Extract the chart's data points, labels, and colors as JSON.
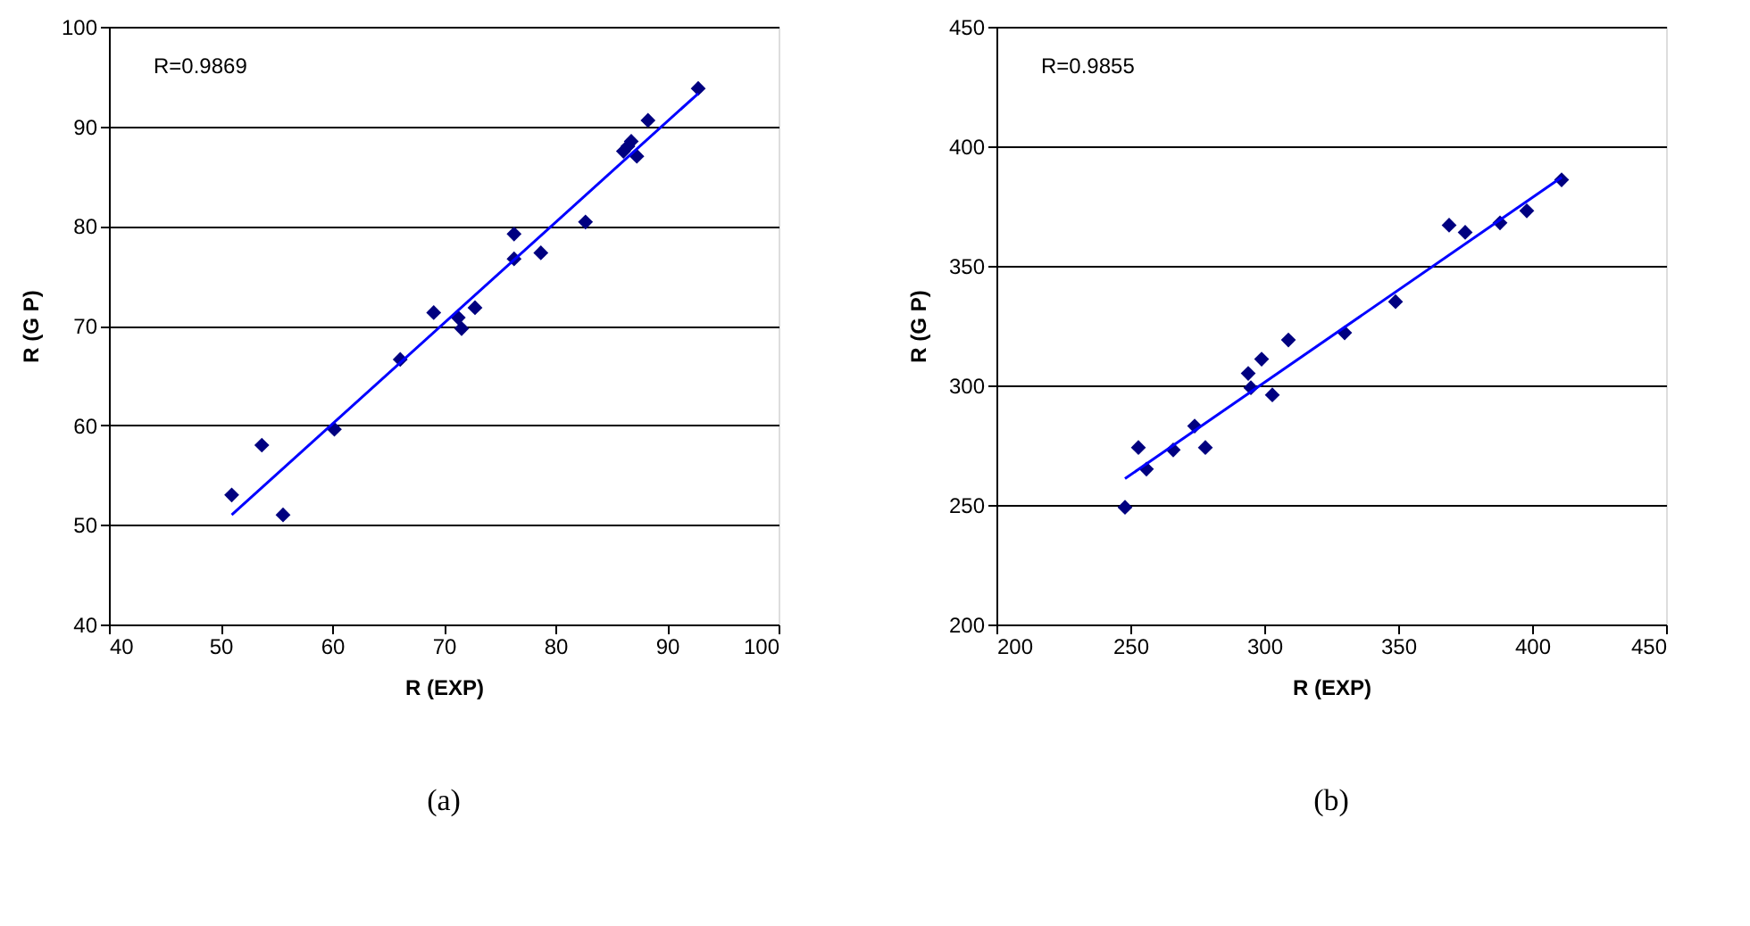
{
  "chart_data": [
    {
      "type": "scatter",
      "xlabel": "R (EXP)",
      "ylabel": "R (G P)",
      "xlim": [
        40,
        100
      ],
      "xticks": [
        40,
        50,
        60,
        70,
        80,
        90,
        100
      ],
      "ylim": [
        40,
        100
      ],
      "yticks": [
        40,
        50,
        60,
        70,
        80,
        90,
        100
      ],
      "grid": "y",
      "annotations": [
        "R=0.9869",
        "(a)"
      ],
      "series": [
        {
          "type": "scatter",
          "marker": "diamond",
          "color": "#000080",
          "x": [
            51,
            53.7,
            55.6,
            60.2,
            66.1,
            69.1,
            71.3,
            71.6,
            72.8,
            76.3,
            76.3,
            78.7,
            82.7,
            86.1,
            86.5,
            86.8,
            87.3,
            88.3,
            92.8
          ],
          "values": [
            53,
            58,
            51,
            59.6,
            66.6,
            71.3,
            70.8,
            69.7,
            71.8,
            79.2,
            76.7,
            77.3,
            80.4,
            87.5,
            88,
            88.5,
            87,
            90.6,
            93.8
          ]
        },
        {
          "type": "line",
          "color": "#0000ff",
          "x": [
            51,
            92.8
          ],
          "values": [
            51,
            93.3
          ]
        }
      ]
    },
    {
      "type": "scatter",
      "xlabel": "R (EXP)",
      "ylabel": "R (G P)",
      "xlim": [
        200,
        450
      ],
      "xticks": [
        200,
        250,
        300,
        350,
        400,
        450
      ],
      "ylim": [
        200,
        450
      ],
      "yticks": [
        200,
        250,
        300,
        350,
        400,
        450
      ],
      "grid": "y",
      "annotations": [
        "R=0.9855",
        "(b)"
      ],
      "series": [
        {
          "type": "scatter",
          "marker": "diamond",
          "color": "#000080",
          "x": [
            248,
            253,
            256,
            266,
            274,
            278,
            294,
            295,
            299,
            303,
            309,
            330,
            349,
            369,
            375,
            388,
            398,
            411
          ],
          "values": [
            249,
            274,
            265,
            273,
            283,
            274,
            305,
            299,
            311,
            296,
            319,
            322,
            335,
            367,
            364,
            368,
            373,
            386
          ]
        },
        {
          "type": "line",
          "color": "#0000ff",
          "x": [
            248,
            411
          ],
          "values": [
            261,
            387
          ]
        }
      ]
    }
  ]
}
